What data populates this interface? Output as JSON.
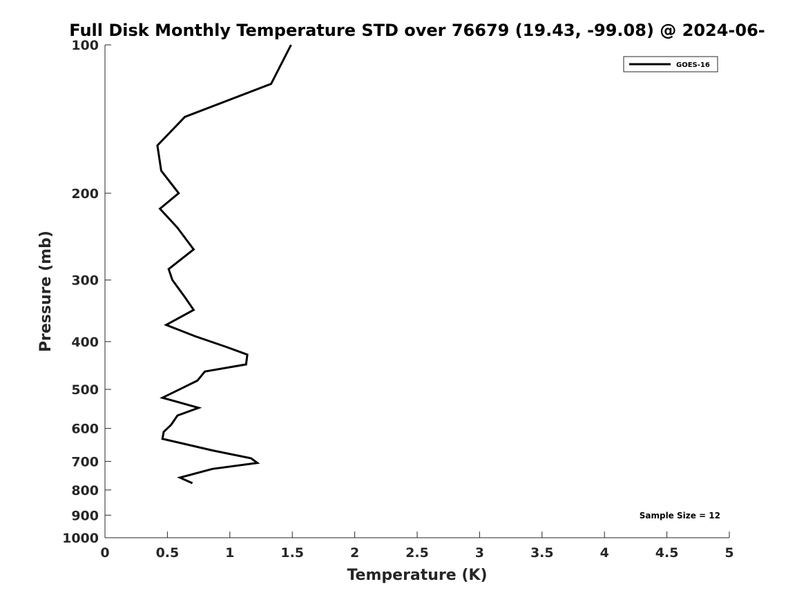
{
  "chart_data": {
    "type": "line",
    "title": "Full Disk Monthly Temperature STD over 76679 (19.43, -99.08) @ 2024-06-",
    "xlabel": "Temperature (K)",
    "ylabel": "Pressure (mb)",
    "xlim": [
      0,
      5
    ],
    "ylim": [
      100,
      1000
    ],
    "y_scale": "log",
    "y_reversed": true,
    "grid": false,
    "legend_placement": "top-right",
    "x_ticks": [
      "0",
      "0.5",
      "1",
      "1.5",
      "2",
      "2.5",
      "3",
      "3.5",
      "4",
      "4.5",
      "5"
    ],
    "y_ticks": [
      "100",
      "200",
      "300",
      "400",
      "500",
      "600",
      "700",
      "800",
      "900",
      "1000"
    ],
    "series": [
      {
        "name": "GOES-16",
        "color": "#000000",
        "x": [
          1.49,
          1.33,
          0.64,
          0.42,
          0.45,
          0.59,
          0.44,
          0.58,
          0.71,
          0.51,
          0.54,
          0.64,
          0.71,
          0.49,
          0.72,
          0.97,
          1.14,
          1.13,
          0.8,
          0.74,
          0.46,
          0.75,
          0.58,
          0.53,
          0.47,
          0.46,
          0.86,
          1.17,
          1.22,
          0.86,
          0.6,
          0.7
        ],
        "y": [
          100,
          120,
          140,
          160,
          180,
          200,
          215,
          235,
          260,
          285,
          300,
          325,
          345,
          370,
          390,
          410,
          425,
          445,
          460,
          480,
          520,
          545,
          565,
          590,
          610,
          630,
          665,
          690,
          705,
          725,
          755,
          775
        ]
      }
    ],
    "annotations": [
      "Sample Size = 12"
    ]
  }
}
